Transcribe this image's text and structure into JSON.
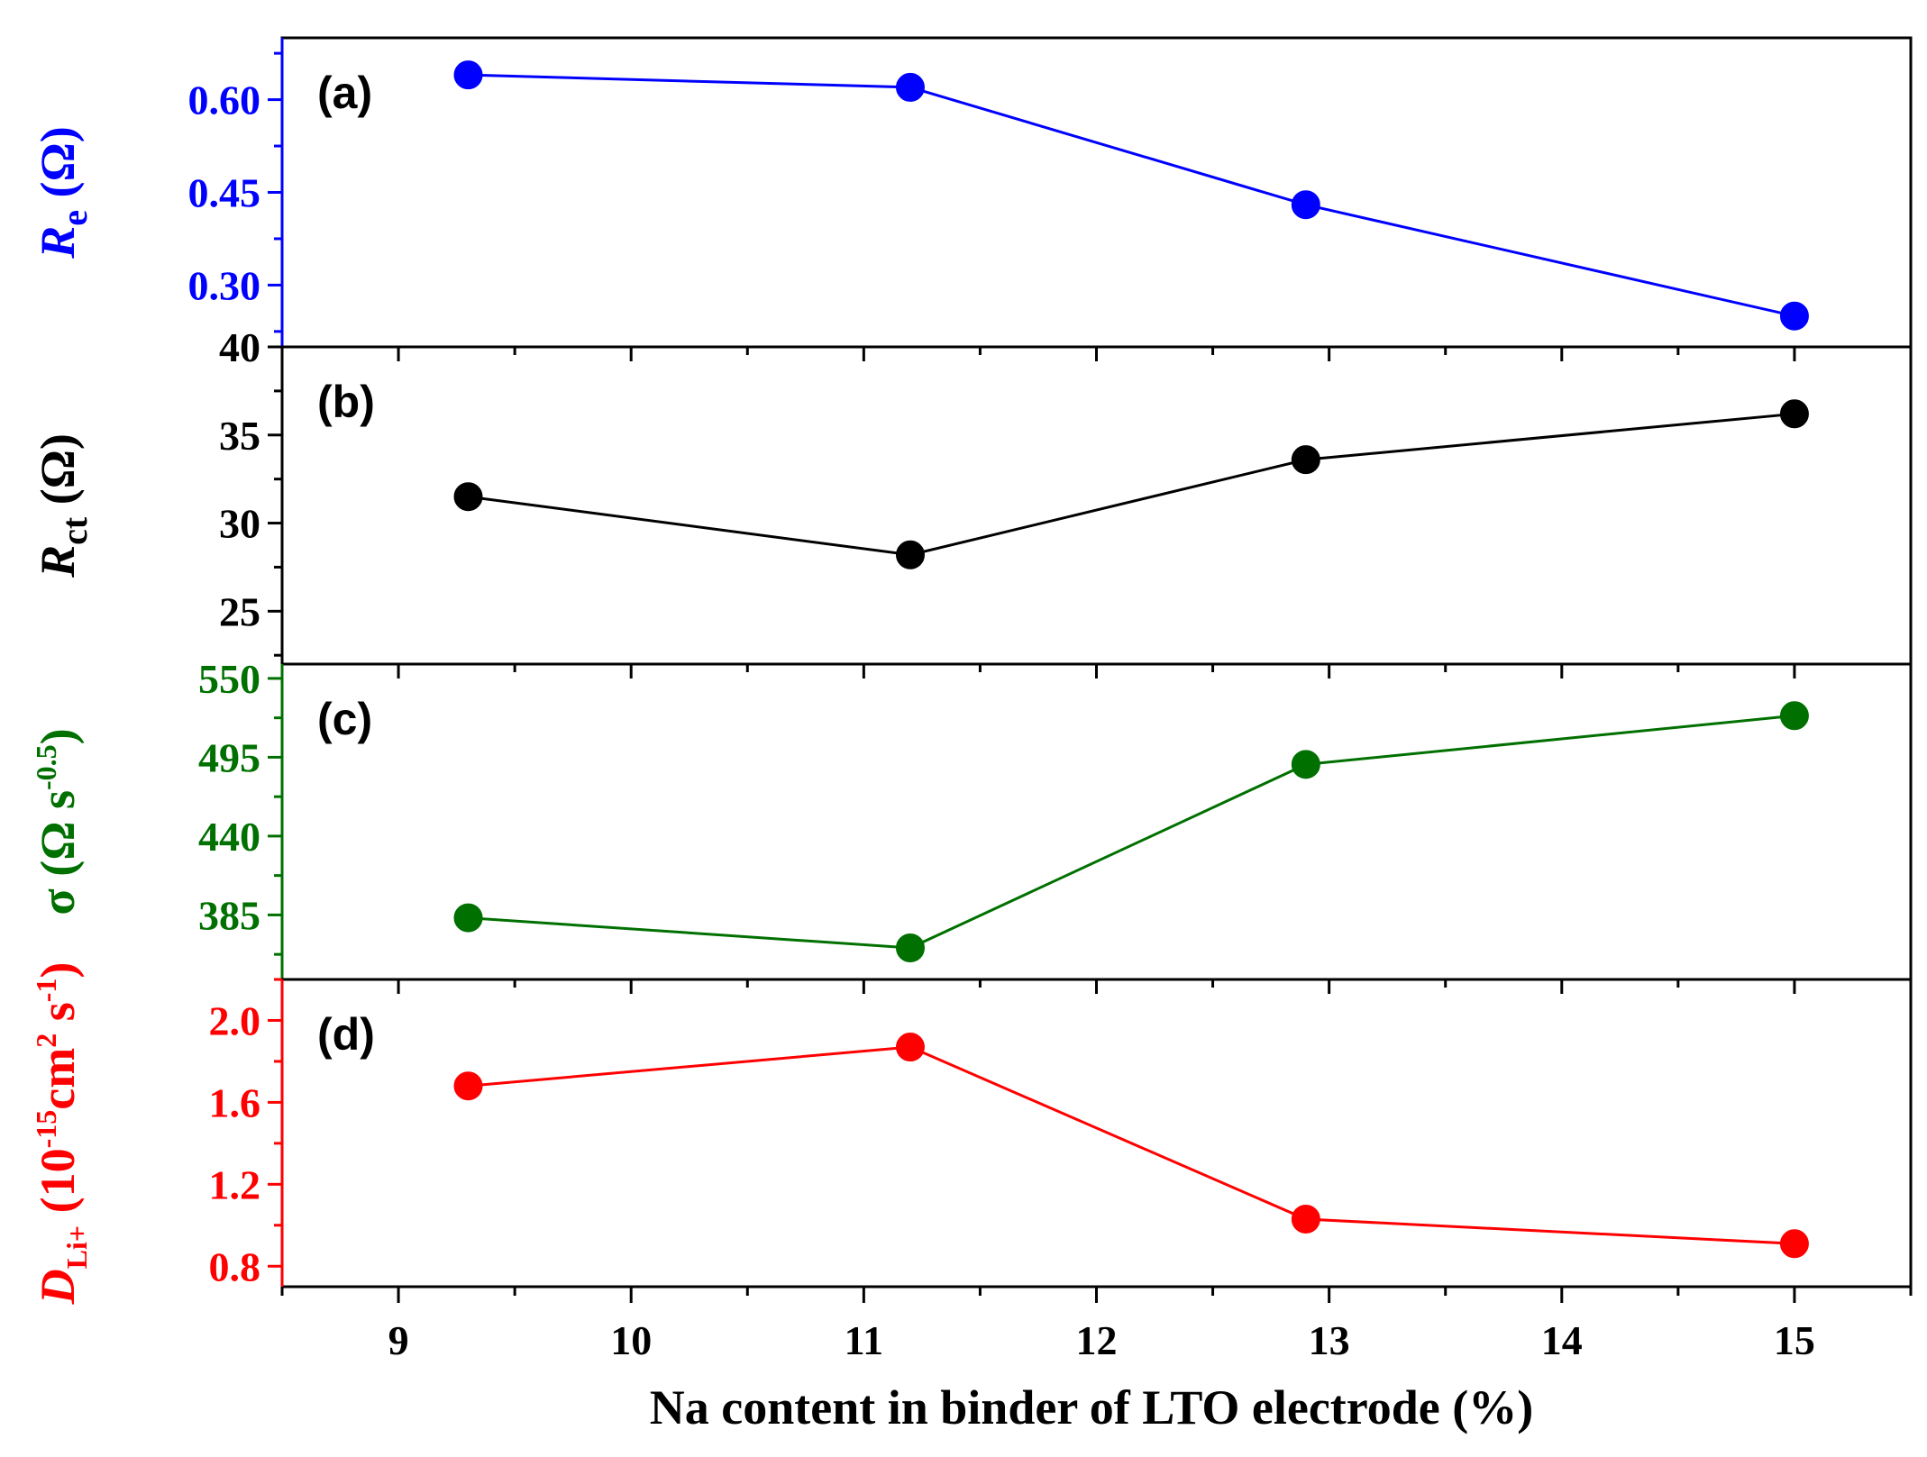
{
  "chart_data": {
    "type": "line",
    "xlabel": "Na content in binder of LTO electrode (%)",
    "xlim": [
      8.5,
      15.5
    ],
    "x_ticks": [
      "9",
      "10",
      "11",
      "12",
      "13",
      "14",
      "15"
    ],
    "x": [
      9.3,
      11.2,
      12.9,
      15.0
    ],
    "panels": [
      {
        "id": "a",
        "label": "(a)",
        "color": "#0000ff",
        "ylabel_main": "R",
        "ylabel_sub": "e",
        "ylabel_unit": " (Ω)",
        "ylim": [
          0.2,
          0.7
        ],
        "yticks": [
          "0.30",
          "0.45",
          "0.60"
        ],
        "values": [
          0.64,
          0.62,
          0.43,
          0.25
        ]
      },
      {
        "id": "b",
        "label": "(b)",
        "color": "#000000",
        "ylabel_main": "R",
        "ylabel_sub": "ct",
        "ylabel_unit": " (Ω)",
        "ylim": [
          22,
          40
        ],
        "yticks": [
          "25",
          "30",
          "35",
          "40"
        ],
        "values": [
          31.5,
          28.2,
          33.6,
          36.2
        ]
      },
      {
        "id": "c",
        "label": "(c)",
        "color": "#007000",
        "ylabel_main": "σ (Ω s",
        "ylabel_sup": "-0.5",
        "ylabel_unit": ")",
        "ylim": [
          340,
          560
        ],
        "yticks": [
          "385",
          "440",
          "495",
          "550"
        ],
        "values": [
          383,
          362,
          490,
          524
        ]
      },
      {
        "id": "d",
        "label": "(d)",
        "color": "#ff0000",
        "ylabel_main": "D",
        "ylabel_sub": "Li+",
        "ylabel_unit": " (10",
        "ylabel_sup": "-15",
        "ylabel_unit2": "cm",
        "ylabel_sup2": "2",
        "ylabel_unit3": " s",
        "ylabel_sup3": "-1",
        "ylabel_unit4": ")",
        "ylim": [
          0.7,
          2.2
        ],
        "yticks": [
          "0.8",
          "1.2",
          "1.6",
          "2.0"
        ],
        "values": [
          1.68,
          1.87,
          1.03,
          0.91
        ]
      }
    ]
  }
}
